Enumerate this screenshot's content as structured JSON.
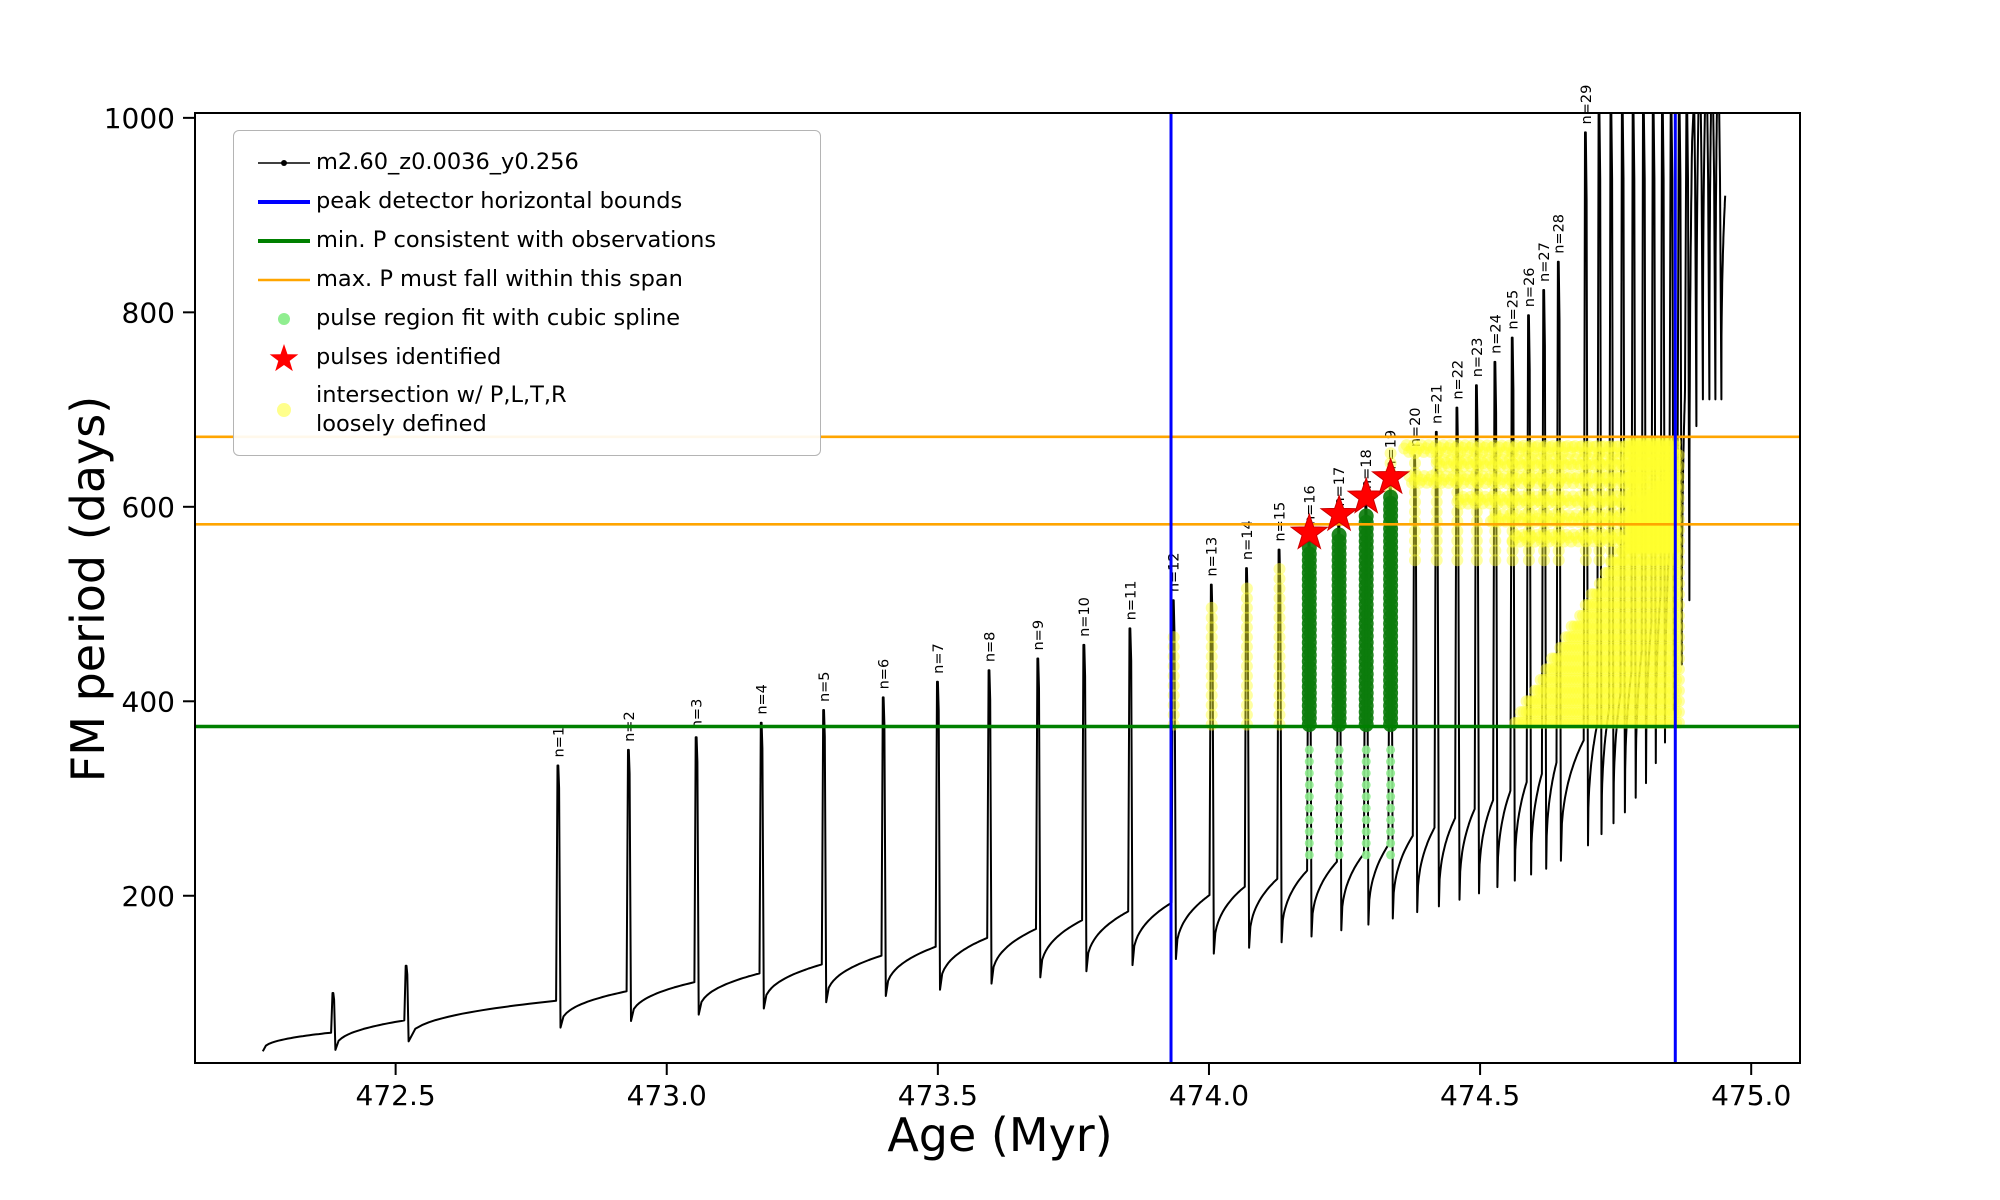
{
  "chart_data": {
    "type": "line",
    "title": "",
    "xlabel": "Age (Myr)",
    "ylabel": "FM period (days)",
    "xlim": [
      472.13,
      475.09
    ],
    "ylim": [
      28,
      1005
    ],
    "x_ticks": [
      472.5,
      473.0,
      473.5,
      474.0,
      474.5,
      475.0
    ],
    "y_ticks": [
      200,
      400,
      600,
      800,
      1000
    ],
    "grid": false,
    "colors": {
      "series": "#000000",
      "peak_bounds": "#0000ff",
      "min_p": "#008000",
      "max_p_span": "#ffa500",
      "spline_light": "#90ee90",
      "spline_dark": "#0c7c0c",
      "pulse_star": "#ff0000",
      "star_edge": "#cc0000",
      "intersection": "#ffff2e",
      "axis": "#000000"
    },
    "legend": {
      "position": "upper left",
      "items": [
        {
          "key": "series",
          "label": "m2.60_z0.0036_y0.256"
        },
        {
          "key": "peak_bounds",
          "label": "peak detector horizontal bounds"
        },
        {
          "key": "min_p",
          "label": "min. P consistent with observations"
        },
        {
          "key": "max_p_span",
          "label": "max. P must fall within this span"
        },
        {
          "key": "spline",
          "label": "pulse region fit with cubic spline"
        },
        {
          "key": "pulses",
          "label": "pulses identified"
        },
        {
          "key": "intersection",
          "label": "intersection w/ P,L,T,R\nloosely defined"
        }
      ]
    },
    "series_label": "m2.60_z0.0036_y0.256",
    "peak_detector_bounds_x": [
      473.93,
      474.86
    ],
    "min_p_consistent": 374,
    "max_p_span": [
      582,
      672
    ],
    "curve": {
      "start": [
        472.255,
        40
      ],
      "end": [
        474.952,
        920
      ],
      "dip_factor": 0.7,
      "baseline_points": [
        [
          472.25,
          45
        ],
        [
          472.45,
          66
        ],
        [
          472.62,
          80
        ],
        [
          472.8,
          92
        ],
        [
          473.0,
          107
        ],
        [
          473.2,
          122
        ],
        [
          473.42,
          140
        ],
        [
          473.62,
          159
        ],
        [
          473.82,
          180
        ],
        [
          474.0,
          200
        ],
        [
          474.15,
          220
        ],
        [
          474.3,
          245
        ],
        [
          474.42,
          270
        ],
        [
          474.52,
          296
        ],
        [
          474.62,
          326
        ],
        [
          474.7,
          362
        ],
        [
          474.76,
          405
        ],
        [
          474.8,
          448
        ],
        [
          474.835,
          505
        ],
        [
          474.862,
          585
        ],
        [
          474.882,
          720
        ],
        [
          474.897,
          1015
        ],
        [
          474.97,
          1015
        ]
      ],
      "pre_pulses": [
        {
          "age": 472.385,
          "tip": 100
        },
        {
          "age": 472.52,
          "tip": 128
        }
      ],
      "pulses": [
        {
          "n": 1,
          "label": "n=1",
          "age": 472.8,
          "tip": 334
        },
        {
          "n": 2,
          "label": "n=2",
          "age": 472.93,
          "tip": 350
        },
        {
          "n": 3,
          "label": "n=3",
          "age": 473.055,
          "tip": 363
        },
        {
          "n": 4,
          "label": "n=4",
          "age": 473.175,
          "tip": 378
        },
        {
          "n": 5,
          "label": "n=5",
          "age": 473.29,
          "tip": 391
        },
        {
          "n": 6,
          "label": "n=6",
          "age": 473.4,
          "tip": 404
        },
        {
          "n": 7,
          "label": "n=7",
          "age": 473.5,
          "tip": 420
        },
        {
          "n": 8,
          "label": "n=8",
          "age": 473.595,
          "tip": 432
        },
        {
          "n": 9,
          "label": "n=9",
          "age": 473.685,
          "tip": 444
        },
        {
          "n": 10,
          "label": "n=10",
          "age": 473.77,
          "tip": 458
        },
        {
          "n": 11,
          "label": "n=11",
          "age": 473.855,
          "tip": 475
        },
        {
          "n": 12,
          "label": "n=12",
          "age": 473.935,
          "tip": 504
        },
        {
          "n": 13,
          "label": "n=13",
          "age": 474.005,
          "tip": 520
        },
        {
          "n": 14,
          "label": "n=14",
          "age": 474.07,
          "tip": 537
        },
        {
          "n": 15,
          "label": "n=15",
          "age": 474.13,
          "tip": 556
        },
        {
          "n": 16,
          "label": "n=16",
          "age": 474.185,
          "tip": 573
        },
        {
          "n": 17,
          "label": "n=17",
          "age": 474.24,
          "tip": 592
        },
        {
          "n": 18,
          "label": "n=18",
          "age": 474.29,
          "tip": 610
        },
        {
          "n": 19,
          "label": "n=19",
          "age": 474.335,
          "tip": 630
        },
        {
          "n": 20,
          "label": "n=20",
          "age": 474.38,
          "tip": 653
        },
        {
          "n": 21,
          "label": "n=21",
          "age": 474.42,
          "tip": 677
        },
        {
          "n": 22,
          "label": "n=22",
          "age": 474.458,
          "tip": 702
        },
        {
          "n": 23,
          "label": "n=23",
          "age": 474.494,
          "tip": 725
        },
        {
          "n": 24,
          "label": "n=24",
          "age": 474.528,
          "tip": 749
        },
        {
          "n": 25,
          "label": "n=25",
          "age": 474.56,
          "tip": 774
        },
        {
          "n": 26,
          "label": "n=26",
          "age": 474.59,
          "tip": 797
        },
        {
          "n": 27,
          "label": "n=27",
          "age": 474.618,
          "tip": 823
        },
        {
          "n": 28,
          "label": "n=28",
          "age": 474.645,
          "tip": 852
        },
        {
          "n": 29,
          "label": "n=29",
          "age": 474.695,
          "tip": 985
        }
      ],
      "tail_pulses": [
        [
          474.72,
          1008
        ],
        [
          474.742,
          1008
        ],
        [
          474.763,
          1008
        ],
        [
          474.783,
          1008
        ],
        [
          474.802,
          1008
        ],
        [
          474.82,
          1008
        ],
        [
          474.837,
          1008
        ],
        [
          474.853,
          1008
        ],
        [
          474.868,
          1008
        ],
        [
          474.882,
          1008
        ],
        [
          474.895,
          1008
        ],
        [
          474.907,
          1008
        ],
        [
          474.919,
          1008
        ],
        [
          474.93,
          1008
        ],
        [
          474.941,
          1008
        ]
      ]
    },
    "spline_fit": {
      "ages": [
        474.185,
        474.24,
        474.29,
        474.335
      ],
      "light_y": [
        242,
        358
      ],
      "dark_y0": 376,
      "dark_tops": [
        558,
        577,
        595,
        615
      ]
    },
    "pulses_identified": [
      [
        474.185,
        573
      ],
      [
        474.24,
        592
      ],
      [
        474.29,
        610
      ],
      [
        474.335,
        630
      ]
    ],
    "intersection": {
      "columns": [
        {
          "age": 473.935,
          "y0": 376,
          "y1": 470
        },
        {
          "age": 474.005,
          "y0": 376,
          "y1": 500
        },
        {
          "age": 474.07,
          "y0": 376,
          "y1": 520
        },
        {
          "age": 474.13,
          "y0": 376,
          "y1": 540
        },
        {
          "age": 474.335,
          "y0": 545,
          "y1": 662
        },
        {
          "age": 474.38,
          "y0": 545,
          "y1": 662
        },
        {
          "age": 474.42,
          "y0": 545,
          "y1": 662
        },
        {
          "age": 474.458,
          "y0": 545,
          "y1": 662
        },
        {
          "age": 474.494,
          "y0": 545,
          "y1": 662
        },
        {
          "age": 474.528,
          "y0": 545,
          "y1": 662
        },
        {
          "age": 474.56,
          "y0": 545,
          "y1": 662
        },
        {
          "age": 474.59,
          "y0": 545,
          "y1": 662
        },
        {
          "age": 474.618,
          "y0": 545,
          "y1": 662
        },
        {
          "age": 474.645,
          "y0": 545,
          "y1": 662
        },
        {
          "age": 474.695,
          "y0": 545,
          "y1": 662
        },
        {
          "age": 474.72,
          "y0": 545,
          "y1": 662
        },
        {
          "age": 474.742,
          "y0": 545,
          "y1": 662
        },
        {
          "age": 474.763,
          "y0": 545,
          "y1": 662
        },
        {
          "age": 474.783,
          "y0": 545,
          "y1": 662
        },
        {
          "age": 474.802,
          "y0": 545,
          "y1": 662
        },
        {
          "age": 474.82,
          "y0": 545,
          "y1": 662
        },
        {
          "age": 474.837,
          "y0": 545,
          "y1": 662
        },
        {
          "age": 474.853,
          "y0": 545,
          "y1": 662
        }
      ],
      "bands": [
        {
          "y": 660,
          "x0": 474.36,
          "x1": 474.862
        },
        {
          "y": 645,
          "x0": 474.42,
          "x1": 474.858
        },
        {
          "y": 628,
          "x0": 474.37,
          "x1": 474.8
        },
        {
          "y": 607,
          "x0": 474.46,
          "x1": 474.83
        },
        {
          "y": 588,
          "x0": 474.52,
          "x1": 474.8
        },
        {
          "y": 568,
          "x0": 474.56,
          "x1": 474.77
        }
      ],
      "triangle": {
        "x0": 474.565,
        "x1": 474.868,
        "y0": 376,
        "top0": 382,
        "top1": 660
      },
      "blob": {
        "x0": 474.775,
        "x1": 474.862,
        "y0": 558,
        "y1": 666
      }
    }
  }
}
